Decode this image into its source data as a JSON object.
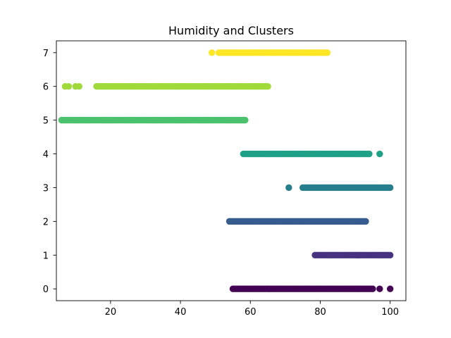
{
  "chart_data": {
    "type": "scatter",
    "title": "Humidity and Clusters",
    "xlabel": "",
    "ylabel": "",
    "xlim": [
      4.5,
      104.5
    ],
    "ylim": [
      -0.35,
      7.35
    ],
    "x_ticks": [
      20,
      40,
      60,
      80,
      100
    ],
    "y_ticks": [
      0,
      1,
      2,
      3,
      4,
      5,
      6,
      7
    ],
    "grid": false,
    "legend": "none",
    "series": [
      {
        "cluster": 0,
        "color": "#440154",
        "x_range": [
          55,
          95
        ],
        "x_extra": [
          97,
          100
        ]
      },
      {
        "cluster": 1,
        "color": "#46327e",
        "x_range": [
          78.5,
          100
        ],
        "x_extra": []
      },
      {
        "cluster": 2,
        "color": "#365c8d",
        "x_range": [
          54,
          93
        ],
        "x_extra": []
      },
      {
        "cluster": 3,
        "color": "#277f8e",
        "x_range": [
          75,
          100
        ],
        "x_extra": [
          71
        ]
      },
      {
        "cluster": 4,
        "color": "#1fa187",
        "x_range": [
          58,
          94
        ],
        "x_extra": [
          97
        ]
      },
      {
        "cluster": 5,
        "color": "#4ac16d",
        "x_range": [
          6,
          58.5
        ],
        "x_extra": []
      },
      {
        "cluster": 6,
        "color": "#9fda3a",
        "x_range": [
          16,
          65
        ],
        "x_extra": [
          7,
          8,
          10,
          11
        ]
      },
      {
        "cluster": 7,
        "color": "#fde725",
        "x_range": [
          51,
          82
        ],
        "x_extra": [
          49
        ]
      }
    ]
  }
}
